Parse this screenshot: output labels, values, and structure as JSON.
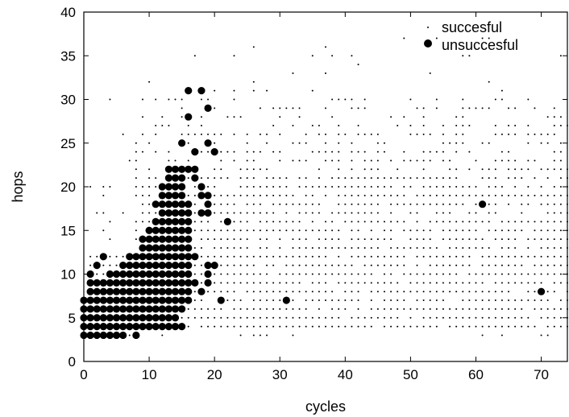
{
  "chart_data": {
    "type": "scatter",
    "title": "",
    "xlabel": "cycles",
    "ylabel": "hops",
    "xlim": [
      0,
      74
    ],
    "ylim": [
      0,
      40
    ],
    "xticks": [
      0,
      10,
      20,
      30,
      40,
      50,
      60,
      70
    ],
    "yticks": [
      0,
      5,
      10,
      15,
      20,
      25,
      30,
      35,
      40
    ],
    "grid": false,
    "legend_position": "top-right",
    "series": [
      {
        "name": "succesful",
        "marker": "small-dot",
        "color": "#000000",
        "points": "dense grid of successful runs: cycles 0-74, hops 3-37 (dense region cycles 1-74, hops 4-30; sparse beyond)"
      },
      {
        "name": "unsuccesful",
        "marker": "filled-circle",
        "color": "#000000",
        "rows": [
          {
            "y": 3,
            "x_from": 0,
            "x_to": 6
          },
          {
            "y": 4,
            "x_from": 0,
            "x_to": 15
          },
          {
            "y": 5,
            "x_from": 0,
            "x_to": 14
          },
          {
            "y": 6,
            "x_from": 0,
            "x_to": 15
          },
          {
            "y": 7,
            "x_from": 0,
            "x_to": 16
          },
          {
            "y": 8,
            "x_from": 1,
            "x_to": 16
          },
          {
            "y": 9,
            "x_from": 1,
            "x_to": 17
          },
          {
            "y": 10,
            "x_from": 4,
            "x_to": 16
          },
          {
            "y": 11,
            "x_from": 6,
            "x_to": 16
          },
          {
            "y": 12,
            "x_from": 7,
            "x_to": 16
          },
          {
            "y": 13,
            "x_from": 9,
            "x_to": 16
          },
          {
            "y": 14,
            "x_from": 9,
            "x_to": 16
          },
          {
            "y": 15,
            "x_from": 10,
            "x_to": 16
          },
          {
            "y": 16,
            "x_from": 11,
            "x_to": 16
          },
          {
            "y": 17,
            "x_from": 12,
            "x_to": 16
          },
          {
            "y": 18,
            "x_from": 12,
            "x_to": 16
          },
          {
            "y": 19,
            "x_from": 12,
            "x_to": 15
          },
          {
            "y": 20,
            "x_from": 12,
            "x_to": 15
          },
          {
            "y": 21,
            "x_from": 13,
            "x_to": 15
          },
          {
            "y": 22,
            "x_from": 13,
            "x_to": 16
          }
        ],
        "extra_points": [
          [
            1,
            10
          ],
          [
            2,
            11
          ],
          [
            3,
            12
          ],
          [
            5,
            3
          ],
          [
            7,
            4
          ],
          [
            8,
            3
          ],
          [
            9,
            13
          ],
          [
            11,
            18
          ],
          [
            12,
            19
          ],
          [
            17,
            12
          ],
          [
            17,
            21
          ],
          [
            17,
            22
          ],
          [
            18,
            8
          ],
          [
            18,
            17
          ],
          [
            18,
            19
          ],
          [
            18,
            20
          ],
          [
            19,
            9
          ],
          [
            19,
            10
          ],
          [
            19,
            11
          ],
          [
            19,
            17
          ],
          [
            19,
            18
          ],
          [
            19,
            19
          ],
          [
            20,
            24
          ],
          [
            20,
            11
          ],
          [
            21,
            7
          ],
          [
            22,
            16
          ],
          [
            15,
            25
          ],
          [
            17,
            24
          ],
          [
            19,
            25
          ],
          [
            19,
            29
          ],
          [
            16,
            28
          ],
          [
            16,
            31
          ],
          [
            18,
            31
          ],
          [
            31,
            7
          ],
          [
            61,
            18
          ],
          [
            70,
            8
          ]
        ]
      }
    ]
  }
}
